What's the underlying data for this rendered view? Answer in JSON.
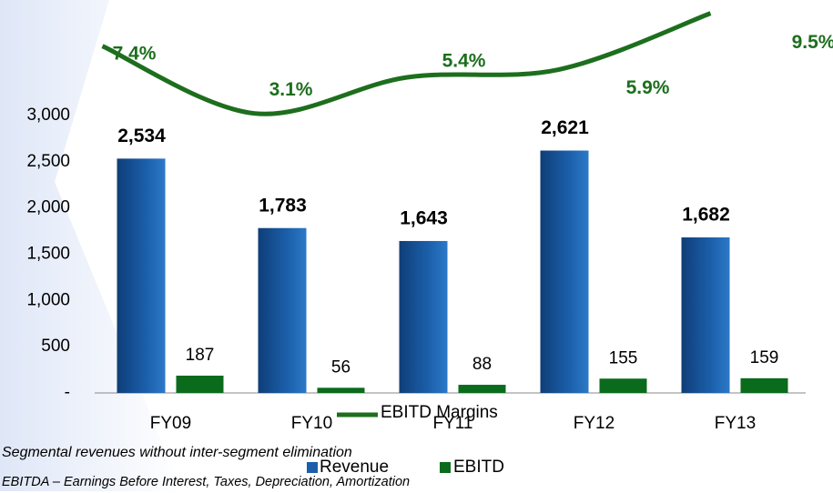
{
  "chart_data": {
    "type": "bar",
    "categories": [
      "FY09",
      "FY10",
      "FY11",
      "FY12",
      "FY13"
    ],
    "series": [
      {
        "name": "Revenue",
        "color": "#1b5faa",
        "values": [
          2534,
          1783,
          1643,
          2621,
          1682
        ],
        "value_labels": [
          "2,534",
          "1,783",
          "1,643",
          "2,621",
          "1,682"
        ]
      },
      {
        "name": "EBITD",
        "color": "#0a6b1c",
        "values": [
          187,
          56,
          88,
          155,
          159
        ]
      },
      {
        "name": "EBITD Margins",
        "color": "#1d6e1d",
        "type": "line",
        "axis": "y2",
        "values": [
          7.4,
          3.1,
          5.4,
          5.9,
          9.5
        ],
        "value_labels": [
          "7.4%",
          "3.1%",
          "5.4%",
          "5.9%",
          "9.5%"
        ]
      }
    ],
    "ylim": [
      0,
      3000
    ],
    "yticks": [
      {
        "value": 0,
        "label": "-"
      },
      500,
      {
        "value": 1000,
        "label": "1,000"
      },
      {
        "value": 1500,
        "label": "1,500"
      },
      {
        "value": 2000,
        "label": "2,000"
      },
      {
        "value": 2500,
        "label": "2,500"
      },
      {
        "value": 3000,
        "label": "3,000"
      }
    ],
    "y2lim": [
      0,
      10
    ],
    "footnotes": [
      "Segmental revenues without inter-segment elimination",
      "EBITDA – Earnings Before Interest, Taxes, Depreciation,  Amortization"
    ]
  }
}
